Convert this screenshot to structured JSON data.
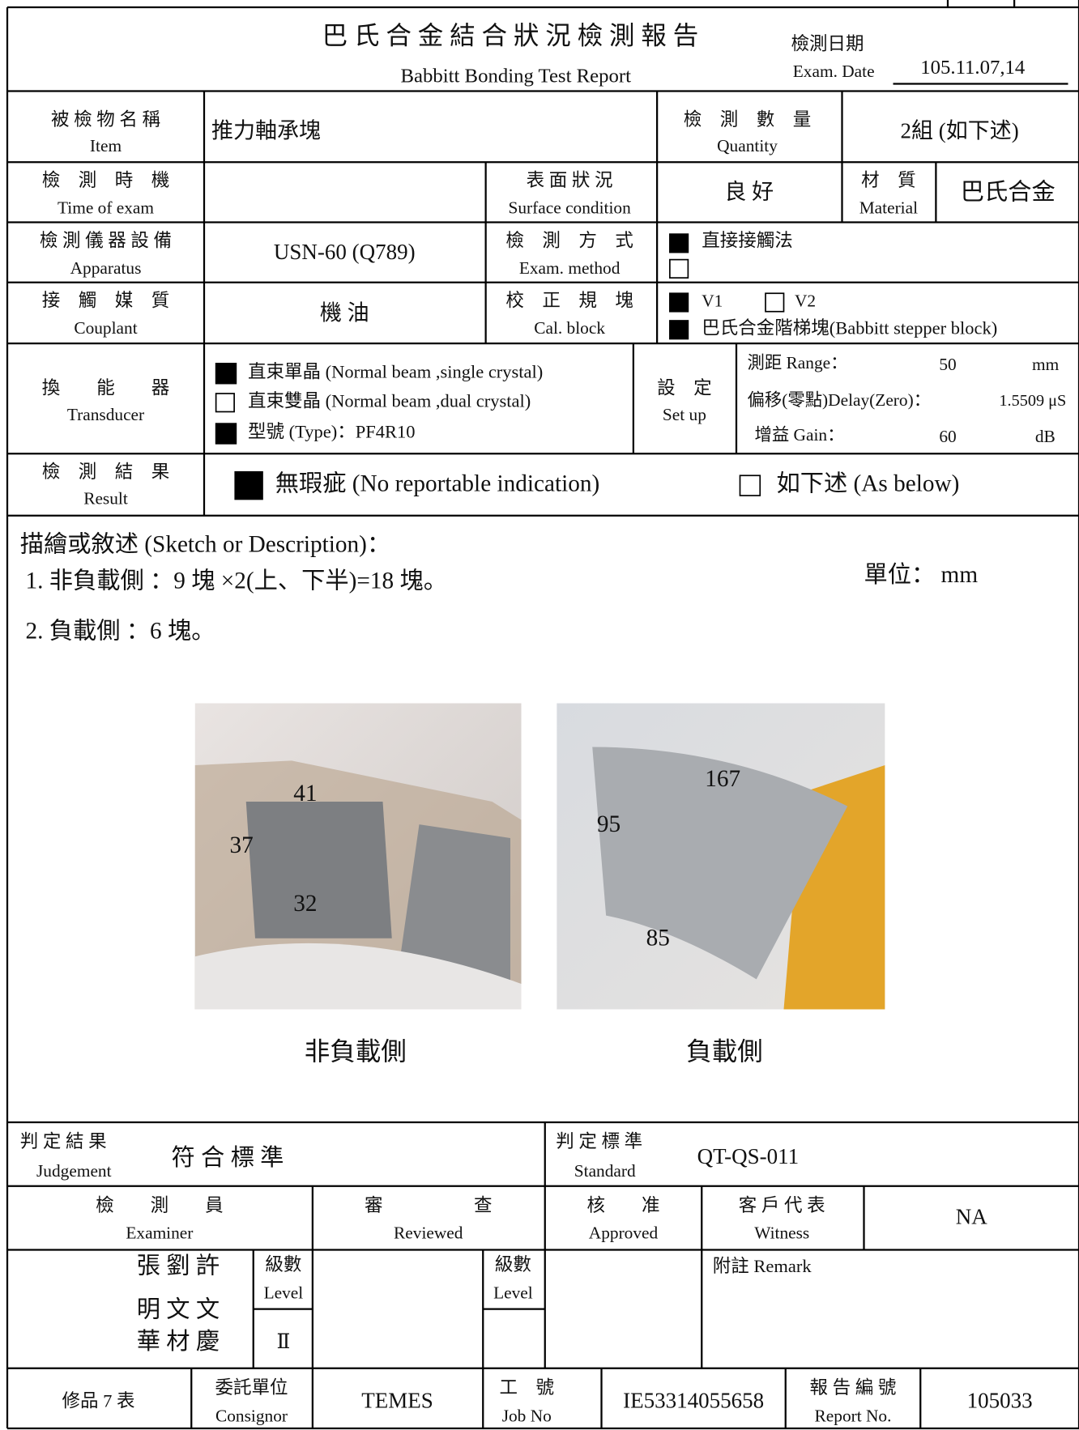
{
  "header": {
    "title_zh": "巴 氏 合 金 結 合 狀 況 檢 測 報 告",
    "title_en": "Babbitt Bonding Test Report",
    "date_label_zh": "檢測日期",
    "date_label_en": "Exam. Date",
    "date": "105.11.07,14"
  },
  "item": {
    "label_zh": "被 檢 物 名 稱",
    "label_en": "Item",
    "value": "推力軸承塊"
  },
  "quantity": {
    "label_zh": "檢　測　數　量",
    "label_en": "Quantity",
    "value": "2組 (如下述)"
  },
  "time_of_exam": {
    "label_zh": "檢　測　時　機",
    "label_en": "Time of exam"
  },
  "surface": {
    "label_zh": "表 面 狀 況",
    "label_en": "Surface condition",
    "value": "良 好"
  },
  "material": {
    "label_zh": "材　質",
    "label_en": "Material",
    "value": "巴氏合金"
  },
  "apparatus": {
    "label_zh": "檢 測 儀 器 設 備",
    "label_en": "Apparatus",
    "value": "USN-60 (Q789)"
  },
  "method": {
    "label_zh": "檢　測　方　式",
    "label_en": "Exam. method",
    "option1": "直接接觸法"
  },
  "couplant": {
    "label_zh": "接　觸　媒　質",
    "label_en": "Couplant",
    "value": "機 油"
  },
  "cal_block": {
    "label_zh": "校　正　規　塊",
    "label_en": "Cal. block",
    "option1": "V1",
    "option2": "V2",
    "option3": "巴氏合金階梯塊(Babbitt stepper block)"
  },
  "transducer": {
    "label_zh": "換　　能　　器",
    "label_en": "Transducer",
    "option1": "直束單晶 (Normal beam ,single crystal)",
    "option2": "直束雙晶 (Normal beam ,dual crystal)",
    "option3": "型號 (Type)：PF4R10"
  },
  "setup": {
    "label_zh": "設　定",
    "label_en": "Set up",
    "range_label": "測距 Range：",
    "range": "50",
    "range_unit": "mm",
    "delay_label": "偏移(零點)Delay(Zero)：",
    "delay": "1.5509 μS",
    "gain_label": "增益 Gain：",
    "gain": "60",
    "gain_unit": "dB"
  },
  "result": {
    "label_zh": "檢　測　結　果",
    "label_en": "Result",
    "option1": "無瑕疵 (No reportable indication)",
    "option2": "如下述 (As below)"
  },
  "sketch": {
    "title": "描繪或敘述 (Sketch or Description)：",
    "line1": "1. 非負載側 ：9 塊 ×2(上、下半)=18 塊。",
    "line2": "2. 負載側 ：6 塊。",
    "unit": "單位： mm",
    "photo1": {
      "labels": [
        "41",
        "37",
        "32"
      ],
      "caption": "非負載側"
    },
    "photo2": {
      "labels": [
        "167",
        "95",
        "85"
      ],
      "caption": "負載側"
    }
  },
  "judgement": {
    "label_zh": "判 定 結 果",
    "label_en": "Judgement",
    "value": "符 合 標 準",
    "std_label_zh": "判 定 標 準",
    "std_label_en": "Standard",
    "standard": "QT-QS-011"
  },
  "signoff": {
    "examiner_zh": "檢　　測　　員",
    "examiner_en": "Examiner",
    "reviewed_zh": "審　　　　　查",
    "reviewed_en": "Reviewed",
    "approved_zh": "核　　准",
    "approved_en": "Approved",
    "witness_zh": "客 戶 代 表",
    "witness_en": "Witness",
    "witness": "NA",
    "names": [
      "張 劉 許",
      "明 文 文",
      "華 材 慶"
    ],
    "level_zh": "級數",
    "level_en": "Level",
    "level": "Ⅱ",
    "level2_zh": "級數",
    "level2_en": "Level",
    "remark": "附註 Remark"
  },
  "footer": {
    "form": "修品 7 表",
    "consignor_zh": "委託單位",
    "consignor_en": "Consignor",
    "consignor": "TEMES",
    "job_zh": "工　號",
    "job_en": "Job No",
    "job": "IE53314055658",
    "report_zh": "報 告 編 號",
    "report_en": "Report No.",
    "report": "105033"
  }
}
